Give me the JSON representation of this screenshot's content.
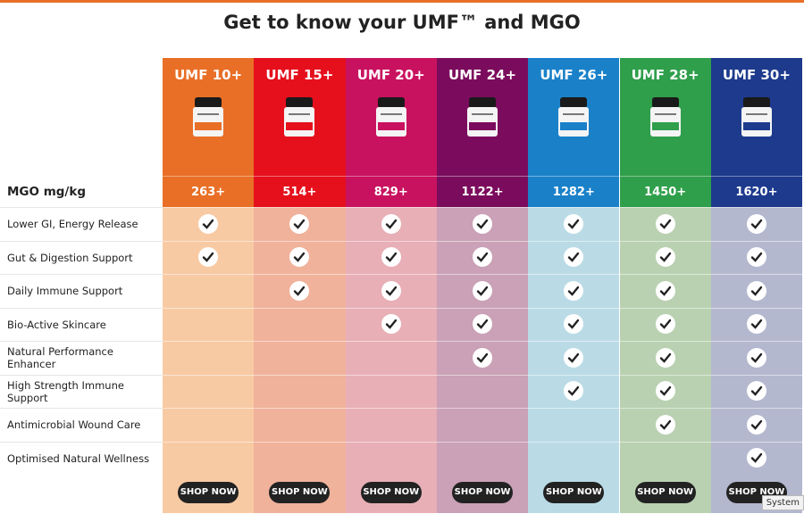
{
  "header": {
    "title": "Get to know your UMF™ and MGO"
  },
  "table": {
    "mgo_label": "MGO mg/kg",
    "button": "SHOP NOW",
    "columns": [
      {
        "name": "UMF 10+",
        "mgo": "263+",
        "color": "#e96f27",
        "tint": "#f8caa4"
      },
      {
        "name": "UMF 15+",
        "mgo": "514+",
        "color": "#e6101d",
        "tint": "#f0b29b"
      },
      {
        "name": "UMF 20+",
        "mgo": "829+",
        "color": "#c9125f",
        "tint": "#e8afb6"
      },
      {
        "name": "UMF 24+",
        "mgo": "1122+",
        "color": "#7b0c5d",
        "tint": "#caa1b6"
      },
      {
        "name": "UMF 26+",
        "mgo": "1282+",
        "color": "#1a81c9",
        "tint": "#badbe6"
      },
      {
        "name": "UMF 28+",
        "mgo": "1450+",
        "color": "#2f9f4b",
        "tint": "#b9d1b1"
      },
      {
        "name": "UMF 30+",
        "mgo": "1620+",
        "color": "#1d3a8d",
        "tint": "#b4b8cf"
      }
    ],
    "rows": [
      {
        "label": "Lower GI, Energy Release",
        "checks": [
          true,
          true,
          true,
          true,
          true,
          true,
          true
        ]
      },
      {
        "label": "Gut & Digestion Support",
        "checks": [
          true,
          true,
          true,
          true,
          true,
          true,
          true
        ]
      },
      {
        "label": "Daily Immune Support",
        "checks": [
          false,
          true,
          true,
          true,
          true,
          true,
          true
        ]
      },
      {
        "label": "Bio-Active Skincare",
        "checks": [
          false,
          false,
          true,
          true,
          true,
          true,
          true
        ]
      },
      {
        "label": "Natural Performance Enhancer",
        "checks": [
          false,
          false,
          false,
          true,
          true,
          true,
          true
        ]
      },
      {
        "label": "High Strength Immune Support",
        "checks": [
          false,
          false,
          false,
          false,
          true,
          true,
          true
        ]
      },
      {
        "label": "Antimicrobial Wound Care",
        "checks": [
          false,
          false,
          false,
          false,
          false,
          true,
          true
        ]
      },
      {
        "label": "Optimised Natural Wellness",
        "checks": [
          false,
          false,
          false,
          false,
          false,
          false,
          true
        ]
      }
    ]
  },
  "tooltip": "System"
}
